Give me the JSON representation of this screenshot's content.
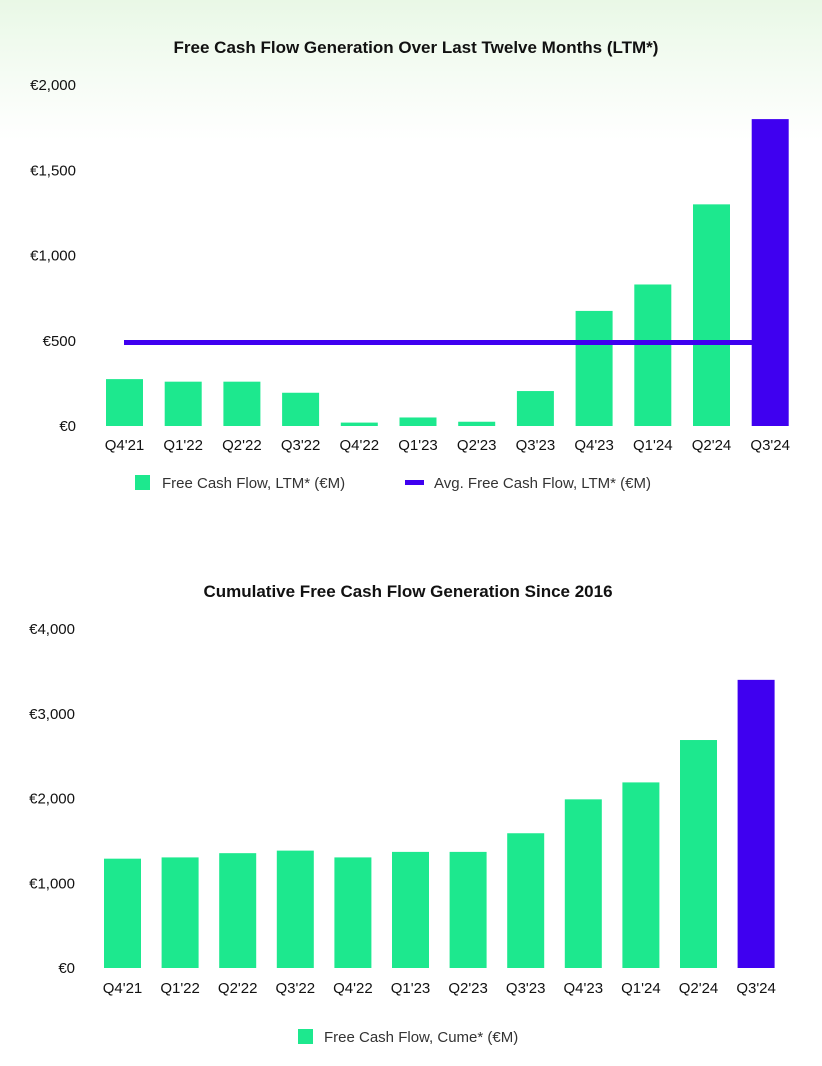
{
  "colors": {
    "fcf": "#1de88e",
    "highlight": "#3f00f0",
    "avg_line": "#3f00f0"
  },
  "chart_data": [
    {
      "type": "bar",
      "title": "Free Cash Flow Generation Over Last Twelve Months (LTM*)",
      "categories": [
        "Q4'21",
        "Q1'22",
        "Q2'22",
        "Q3'22",
        "Q4'22",
        "Q1'23",
        "Q2'23",
        "Q3'23",
        "Q4'23",
        "Q1'24",
        "Q2'24",
        "Q3'24"
      ],
      "series": [
        {
          "name": "Free Cash Flow, LTM* (€M)",
          "values": [
            275,
            260,
            260,
            195,
            20,
            50,
            25,
            205,
            675,
            830,
            1300,
            1800
          ]
        },
        {
          "name": "Avg. Free Cash Flow, LTM* (€M)",
          "type": "line",
          "values": [
            490,
            490,
            490,
            490,
            490,
            490,
            490,
            490,
            490,
            490,
            490,
            490
          ]
        }
      ],
      "highlight_index": 11,
      "ylim": [
        0,
        2000
      ],
      "yticks": [
        "€0",
        "€500",
        "€1,000",
        "€1,500",
        "€2,000"
      ],
      "ytick_values": [
        0,
        500,
        1000,
        1500,
        2000
      ],
      "grid": false,
      "legend": "bottom"
    },
    {
      "type": "bar",
      "title": "Cumulative Free Cash Flow Generation Since 2016",
      "categories": [
        "Q4'21",
        "Q1'22",
        "Q2'22",
        "Q3'22",
        "Q4'22",
        "Q1'23",
        "Q2'23",
        "Q3'23",
        "Q4'23",
        "Q1'24",
        "Q2'24",
        "Q3'24"
      ],
      "series": [
        {
          "name": "Free Cash Flow, Cume* (€M)",
          "values": [
            1290,
            1305,
            1355,
            1385,
            1305,
            1370,
            1370,
            1590,
            1990,
            2190,
            2690,
            3400
          ]
        }
      ],
      "highlight_index": 11,
      "ylim": [
        0,
        4000
      ],
      "yticks": [
        "€0",
        "€1,000",
        "€2,000",
        "€3,000",
        "€4,000"
      ],
      "ytick_values": [
        0,
        1000,
        2000,
        3000,
        4000
      ],
      "grid": false,
      "legend": "bottom"
    }
  ]
}
